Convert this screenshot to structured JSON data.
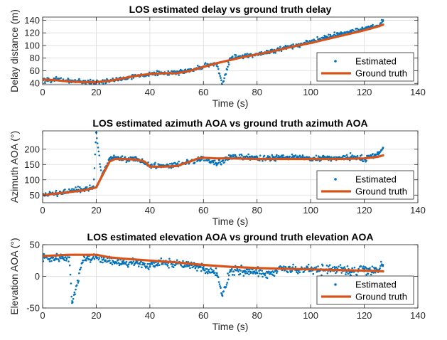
{
  "figure_colors": {
    "estimated": "#0072BD",
    "ground_truth": "#D95319",
    "grid": "#dcdcdc",
    "axis": "#262626"
  },
  "chart_data": [
    {
      "type": "line",
      "title": "LOS estimated delay vs ground truth delay",
      "xlabel": "Time (s)",
      "ylabel": "Delay distance (m)",
      "xlim": [
        0,
        140
      ],
      "ylim": [
        38,
        145
      ],
      "xticks": [
        0,
        20,
        40,
        60,
        80,
        100,
        120,
        140
      ],
      "yticks": [
        40,
        60,
        80,
        100,
        120,
        140
      ],
      "grid": true,
      "legend_position": "bottom-right",
      "series": [
        {
          "name": "Estimated",
          "style": "markers",
          "x": [
            0,
            5,
            10,
            15,
            20,
            25,
            30,
            35,
            40,
            45,
            50,
            55,
            60,
            65,
            67,
            70,
            75,
            80,
            85,
            90,
            95,
            100,
            105,
            110,
            115,
            120,
            125,
            127
          ],
          "y": [
            46,
            46,
            44,
            43,
            42,
            44,
            48,
            52,
            55,
            56,
            57,
            61,
            67,
            72,
            37,
            80,
            83,
            87,
            90,
            96,
            101,
            106,
            112,
            118,
            122,
            127,
            131,
            140
          ]
        },
        {
          "name": "Ground truth",
          "style": "line",
          "x": [
            0,
            5,
            10,
            15,
            20,
            25,
            30,
            35,
            40,
            45,
            50,
            55,
            60,
            65,
            70,
            75,
            80,
            85,
            90,
            95,
            100,
            105,
            110,
            115,
            120,
            125,
            127
          ],
          "y": [
            46,
            45,
            43,
            42,
            42,
            44,
            48,
            52,
            55,
            56,
            56,
            60,
            66,
            72,
            77,
            82,
            86,
            90,
            95,
            100,
            104,
            109,
            114,
            119,
            124,
            130,
            133
          ]
        }
      ]
    },
    {
      "type": "line",
      "title": "LOS estimated azimuth AOA vs ground truth azimuth AOA",
      "xlabel": "Time (s)",
      "ylabel": "Azimuth AOA (°)",
      "xlim": [
        0,
        140
      ],
      "ylim": [
        25,
        260
      ],
      "xticks": [
        0,
        20,
        40,
        60,
        80,
        100,
        120,
        140
      ],
      "yticks": [
        50,
        100,
        150,
        200
      ],
      "grid": true,
      "legend_position": "bottom-right",
      "series": [
        {
          "name": "Estimated",
          "style": "markers",
          "x": [
            0,
            5,
            10,
            15,
            19,
            20,
            22,
            25,
            27,
            30,
            35,
            40,
            45,
            50,
            55,
            60,
            65,
            70,
            75,
            80,
            85,
            90,
            95,
            100,
            105,
            110,
            115,
            120,
            125,
            127
          ],
          "y": [
            50,
            55,
            62,
            68,
            75,
            255,
            110,
            170,
            172,
            168,
            170,
            145,
            148,
            150,
            160,
            172,
            150,
            175,
            175,
            172,
            170,
            172,
            175,
            168,
            172,
            170,
            175,
            168,
            185,
            205
          ]
        },
        {
          "name": "Ground truth",
          "style": "line",
          "x": [
            0,
            5,
            10,
            15,
            20,
            22,
            25,
            27,
            30,
            35,
            38,
            40,
            45,
            50,
            55,
            58,
            60,
            65,
            70,
            80,
            90,
            100,
            110,
            120,
            125,
            127
          ],
          "y": [
            50,
            55,
            60,
            65,
            75,
            110,
            160,
            168,
            168,
            166,
            160,
            143,
            143,
            145,
            160,
            170,
            172,
            170,
            170,
            168,
            168,
            168,
            168,
            170,
            175,
            180
          ]
        }
      ]
    },
    {
      "type": "line",
      "title": "LOS estimated elevation AOA vs ground truth elevation AOA",
      "xlabel": "Time (s)",
      "ylabel": "Elevation AOA (°)",
      "xlim": [
        0,
        140
      ],
      "ylim": [
        -50,
        50
      ],
      "xticks": [
        0,
        20,
        40,
        60,
        80,
        100,
        120,
        140
      ],
      "yticks": [
        -50,
        0,
        50
      ],
      "grid": true,
      "legend_position": "bottom-right",
      "series": [
        {
          "name": "Estimated",
          "style": "markers",
          "x": [
            0,
            5,
            10,
            11,
            15,
            20,
            25,
            30,
            35,
            40,
            45,
            50,
            55,
            60,
            65,
            67,
            70,
            75,
            80,
            85,
            90,
            95,
            100,
            105,
            110,
            115,
            120,
            125,
            127
          ],
          "y": [
            30,
            28,
            30,
            -42,
            25,
            30,
            25,
            20,
            22,
            15,
            22,
            20,
            18,
            12,
            5,
            -30,
            10,
            8,
            6,
            5,
            12,
            10,
            12,
            10,
            12,
            8,
            12,
            10,
            18
          ]
        },
        {
          "name": "Ground truth",
          "style": "line",
          "x": [
            0,
            10,
            20,
            25,
            30,
            40,
            50,
            60,
            70,
            80,
            90,
            100,
            110,
            120,
            127
          ],
          "y": [
            32,
            34,
            34,
            30,
            28,
            25,
            22,
            18,
            15,
            13,
            12,
            11,
            10,
            9,
            8
          ]
        }
      ]
    }
  ]
}
